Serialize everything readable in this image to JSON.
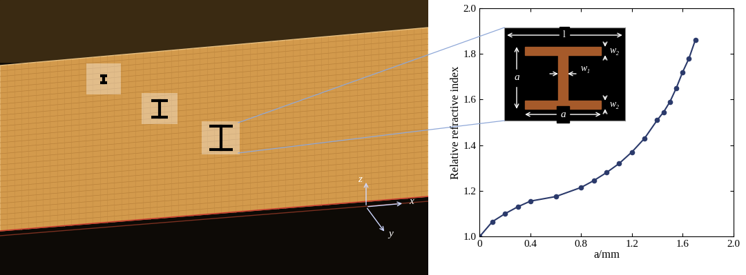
{
  "chart_data": {
    "type": "line",
    "x_label": "a/mm",
    "y_label": "Relative refractive index",
    "x": [
      0,
      0.1,
      0.2,
      0.3,
      0.4,
      0.6,
      0.8,
      0.9,
      1.0,
      1.1,
      1.2,
      1.3,
      1.4,
      1.45,
      1.5,
      1.55,
      1.6,
      1.65,
      1.7
    ],
    "values": [
      1.0,
      1.065,
      1.1,
      1.13,
      1.155,
      1.175,
      1.215,
      1.245,
      1.28,
      1.32,
      1.37,
      1.43,
      1.51,
      1.545,
      1.59,
      1.65,
      1.72,
      1.78,
      1.86
    ],
    "color": "#2b3a6b",
    "marker": "o",
    "line_style": "solid",
    "xlim": [
      0,
      2.0
    ],
    "ylim": [
      1.0,
      2.0
    ],
    "xticks": [
      0,
      0.4,
      0.8,
      1.2,
      1.6,
      2.0
    ],
    "yticks": [
      1.0,
      1.2,
      1.4,
      1.6,
      1.8,
      2.0
    ]
  },
  "photo": {
    "axis_labels": {
      "x": "x",
      "y": "y",
      "z": "z"
    }
  },
  "unit_cell": {
    "period": "l",
    "height": "a",
    "width": "a",
    "web": "w₁",
    "flange": "w₂"
  }
}
